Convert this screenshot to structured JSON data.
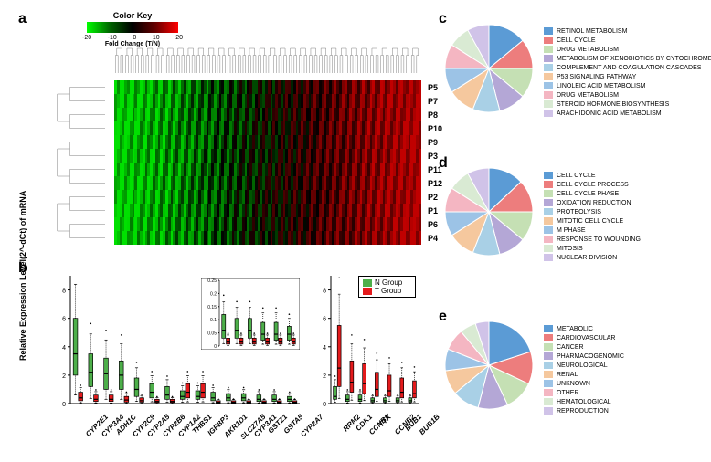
{
  "panel_labels": {
    "a": "a",
    "b": "b",
    "c": "c",
    "d": "d",
    "e": "e"
  },
  "color_key": {
    "title": "Color Key",
    "xlabel": "Fold Change (T/N)",
    "ticks": [
      "-20",
      "-10",
      "0",
      "10",
      "20"
    ],
    "gradient_stops": [
      "#00ff00",
      "#006600",
      "#000000",
      "#660000",
      "#ff0000"
    ]
  },
  "heatmap": {
    "row_labels": [
      "P5",
      "P7",
      "P8",
      "P10",
      "P9",
      "P3",
      "P11",
      "P12",
      "P2",
      "P1",
      "P6",
      "P4"
    ],
    "n_cols": 120,
    "low_color": "#00e000",
    "mid_color": "#000000",
    "high_color": "#c00000",
    "dendro_color": "#808080"
  },
  "boxplot": {
    "ylabel": "Relative Expression Level(2^-dCt) of mRNA",
    "colors": {
      "N": "#4daf4a",
      "T": "#e41a1c"
    },
    "legend": {
      "N": "N Group",
      "T": "T Group"
    },
    "left_panel": {
      "ylim": [
        0,
        9
      ],
      "yticks": [
        0,
        2,
        4,
        6,
        8
      ],
      "genes": [
        "CYP2E1",
        "CYP3A4",
        "ADH1C",
        "CYP2C9",
        "CYP2A5",
        "CYP2B6",
        "CYP1A2",
        "THBS1",
        "IGFBP3",
        "AKR1D1",
        "SLC27A5",
        "CYP3A1",
        "GSTZ1",
        "GSTA5",
        "CYP2A7"
      ],
      "N_med": [
        3.5,
        2.2,
        2.1,
        2.0,
        1.0,
        0.8,
        0.6,
        0.5,
        0.5,
        0.4,
        0.4,
        0.4,
        0.3,
        0.3,
        0.3
      ],
      "N_q1": [
        2.0,
        1.2,
        1.0,
        1.0,
        0.5,
        0.4,
        0.3,
        0.3,
        0.3,
        0.2,
        0.2,
        0.2,
        0.15,
        0.15,
        0.15
      ],
      "N_q3": [
        6.0,
        3.5,
        3.2,
        3.0,
        1.8,
        1.4,
        1.2,
        0.9,
        0.9,
        0.8,
        0.7,
        0.7,
        0.6,
        0.6,
        0.5
      ],
      "T_med": [
        0.4,
        0.3,
        0.3,
        0.25,
        0.2,
        0.15,
        0.15,
        0.8,
        0.8,
        0.1,
        0.1,
        0.1,
        0.1,
        0.1,
        0.1
      ],
      "T_q1": [
        0.2,
        0.15,
        0.15,
        0.1,
        0.1,
        0.08,
        0.08,
        0.4,
        0.4,
        0.05,
        0.05,
        0.05,
        0.05,
        0.05,
        0.05
      ],
      "T_q3": [
        0.8,
        0.6,
        0.6,
        0.5,
        0.4,
        0.3,
        0.3,
        1.4,
        1.4,
        0.2,
        0.2,
        0.2,
        0.2,
        0.2,
        0.2
      ]
    },
    "inset_panel": {
      "ylim": [
        0,
        0.25
      ],
      "yticks": [
        0,
        0.05,
        0.1,
        0.15,
        0.2,
        0.25
      ]
    },
    "right_panel": {
      "ylim": [
        0,
        9
      ],
      "yticks": [
        0,
        2,
        4,
        6,
        8
      ],
      "genes": [
        "RRM2",
        "CDK1",
        "CCNB1",
        "TTK",
        "CCNB2",
        "BUB1",
        "BUB1B"
      ],
      "N_med": [
        0.5,
        0.3,
        0.3,
        0.2,
        0.2,
        0.2,
        0.2
      ],
      "N_q1": [
        0.3,
        0.15,
        0.15,
        0.1,
        0.1,
        0.1,
        0.1
      ],
      "N_q3": [
        1.2,
        0.6,
        0.6,
        0.4,
        0.4,
        0.4,
        0.4
      ],
      "T_med": [
        2.5,
        1.5,
        1.4,
        1.0,
        0.9,
        0.8,
        0.7
      ],
      "T_q1": [
        1.2,
        0.8,
        0.7,
        0.5,
        0.5,
        0.4,
        0.4
      ],
      "T_q3": [
        5.5,
        3.0,
        2.8,
        2.2,
        2.0,
        1.8,
        1.6
      ]
    }
  },
  "pies": {
    "palette": [
      "#5b9bd5",
      "#ed7d7d",
      "#c5e0b4",
      "#b4a7d6",
      "#a9d0e6",
      "#f5c89e",
      "#9cc3e6",
      "#f4b6c2",
      "#d9ead3",
      "#d0c3e8"
    ],
    "c": {
      "labels": [
        "RETINOL METABOLISM",
        "CELL CYCLE",
        "DRUG METABOLISM",
        "METABOLISM OF XENOBIOTICS BY CYTOCHROME P450",
        "COMPLEMENT AND COAGULATION CASCADES",
        "P53 SIGNALING PATHWAY",
        "LINOLEIC ACID METABOLISM",
        "DRUG METABOLISM",
        "STEROID HORMONE BIOSYNTHESIS",
        "ARACHIDONIC ACID METABOLISM"
      ],
      "values": [
        14,
        11,
        11,
        10,
        10,
        10,
        9,
        9,
        8,
        8
      ]
    },
    "d": {
      "labels": [
        "CELL CYCLE",
        "CELL CYCLE PROCESS",
        "CELL CYCLE PHASE",
        "OXIDATION REDUCTION",
        "PROTEOLYSIS",
        "MITOTIC CELL CYCLE",
        "M PHASE",
        "RESPONSE TO WOUNDING",
        "MITOSIS",
        "NUCLEAR DIVISION"
      ],
      "values": [
        13,
        12,
        11,
        10,
        10,
        10,
        9,
        9,
        8,
        8
      ]
    },
    "e": {
      "labels": [
        "METABOLIC",
        "CARDIOVASCULAR",
        "CANCER",
        "PHARMACOGENOMIC",
        "NEUROLOGICAL",
        "RENAL",
        "UNKNOWN",
        "OTHER",
        "HEMATOLOGICAL",
        "REPRODUCTION"
      ],
      "values": [
        20,
        12,
        11,
        11,
        10,
        9,
        8,
        8,
        6,
        5
      ]
    }
  }
}
